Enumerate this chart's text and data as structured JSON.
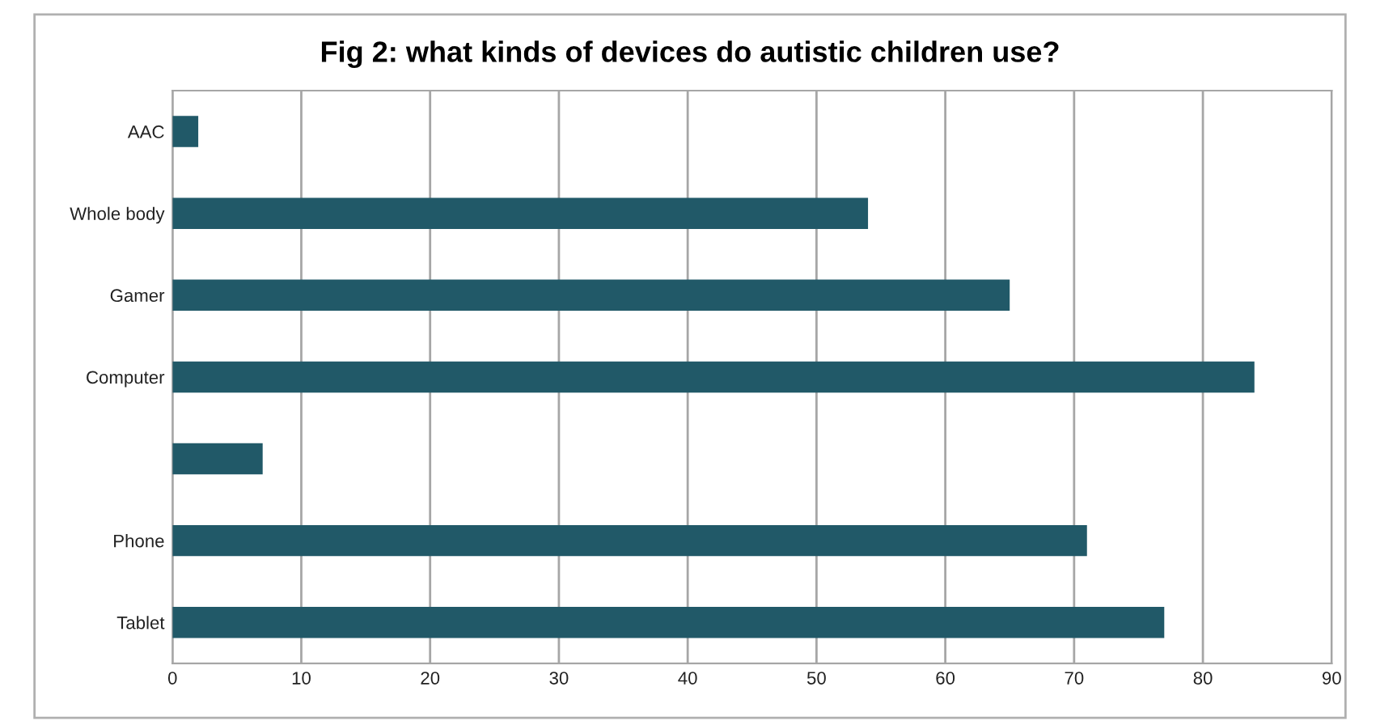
{
  "chart_data": {
    "type": "bar",
    "orientation": "horizontal",
    "title": "Fig 2: what kinds of devices do autistic children use?",
    "categories": [
      "AAC",
      "Whole body",
      "Gamer",
      "Computer",
      null,
      "Phone",
      "Tablet"
    ],
    "values": [
      2,
      54,
      65,
      84,
      7,
      71,
      77
    ],
    "color": "#215968",
    "xlim": [
      0,
      90
    ],
    "xticks": [
      0,
      10,
      20,
      30,
      40,
      50,
      60,
      70,
      80,
      90
    ],
    "grid": "x"
  }
}
